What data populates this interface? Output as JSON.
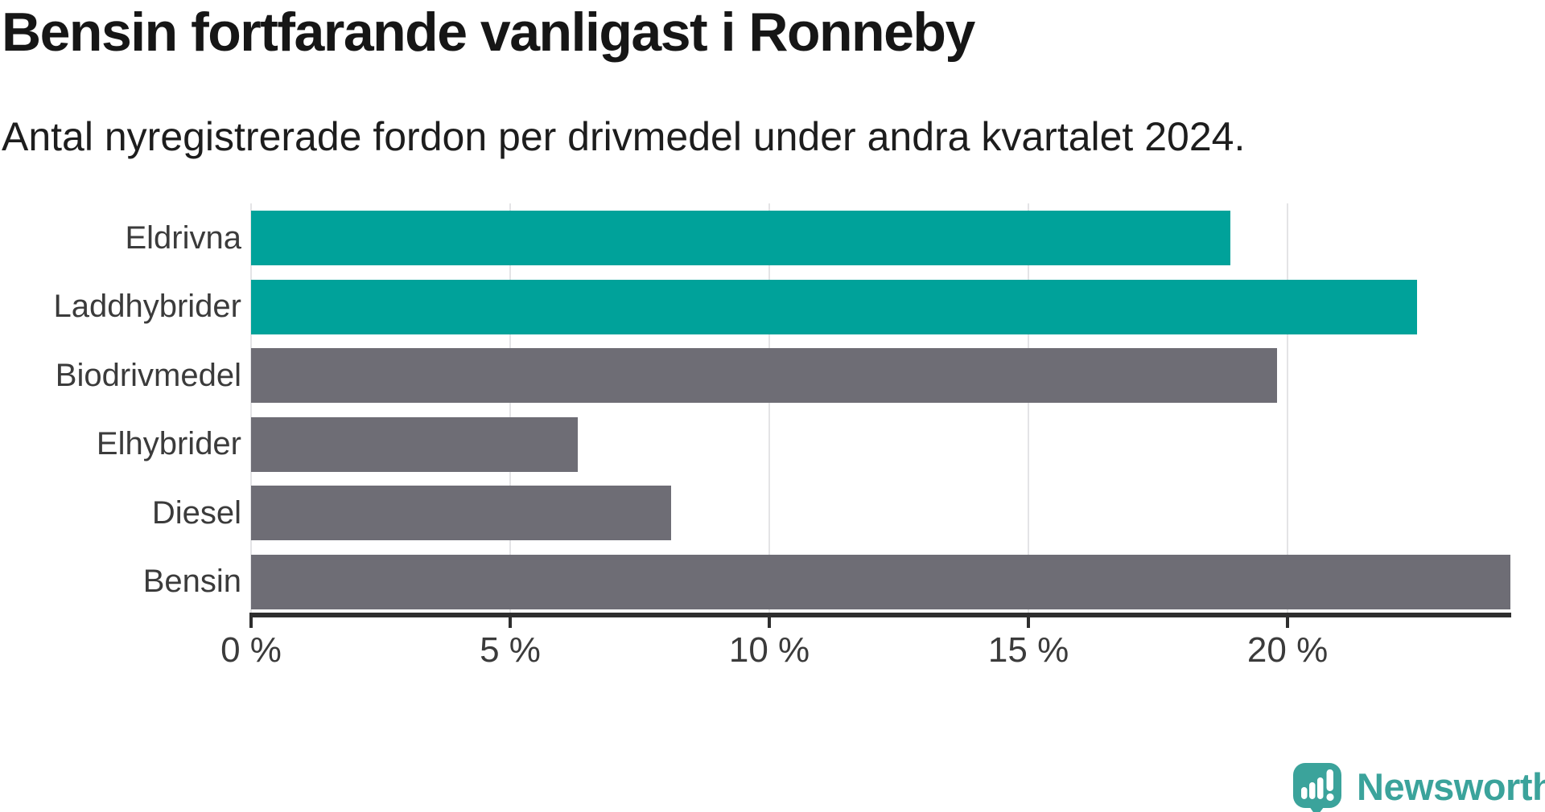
{
  "chart_data": {
    "type": "bar",
    "orientation": "horizontal",
    "title": "Bensin fortfarande vanligast i Ronneby",
    "subtitle": "Antal nyregistrerade fordon per drivmedel under andra kvartalet 2024.",
    "categories": [
      "Eldrivna",
      "Laddhybrider",
      "Biodrivmedel",
      "Elhybrider",
      "Diesel",
      "Bensin"
    ],
    "values": [
      18.9,
      22.5,
      19.8,
      6.3,
      8.1,
      24.3
    ],
    "unit": "%",
    "bar_colors": [
      "#00a29a",
      "#00a29a",
      "#6e6d75",
      "#6e6d75",
      "#6e6d75",
      "#6e6d75"
    ],
    "highlight_color": "#00a29a",
    "default_color": "#6e6d75",
    "xlim": [
      0,
      24.3
    ],
    "x_ticks": [
      {
        "value": 0,
        "label": "0 %"
      },
      {
        "value": 5,
        "label": "5 %"
      },
      {
        "value": 10,
        "label": "10 %"
      },
      {
        "value": 15,
        "label": "15 %"
      },
      {
        "value": 20,
        "label": "20 %"
      }
    ],
    "grid": "vertical",
    "legend": "none",
    "grid_color": "#e4e4e6",
    "axis_color": "#2e2e2e",
    "label_color": "#3b3b3b"
  },
  "footer": {
    "brand": "Newsworthy",
    "brand_color": "#3ba39b"
  }
}
